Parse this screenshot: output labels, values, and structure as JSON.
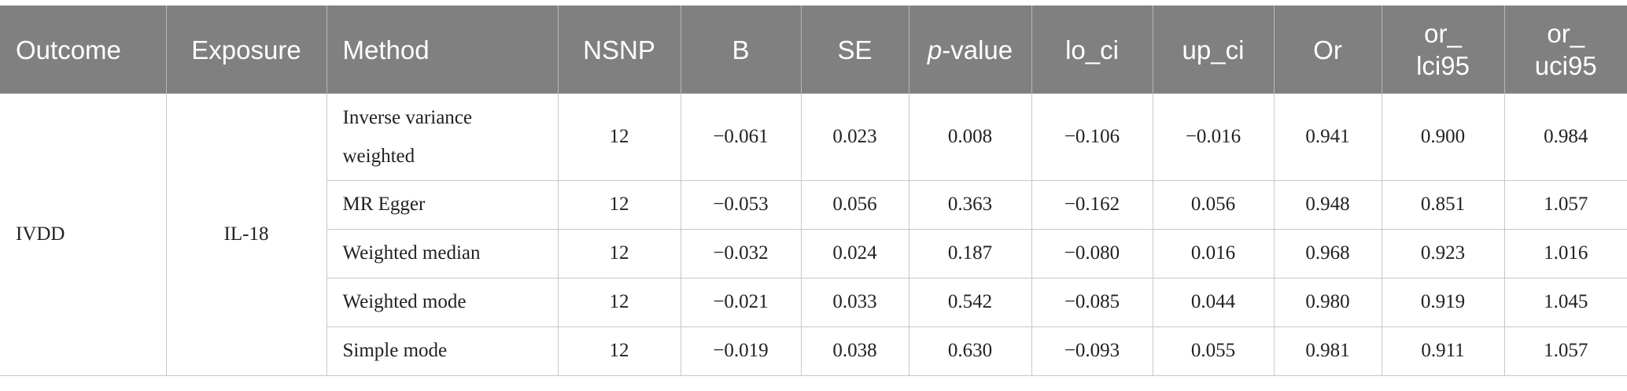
{
  "headers": [
    {
      "key": "outcome",
      "label": "Outcome"
    },
    {
      "key": "exposure",
      "label": "Exposure"
    },
    {
      "key": "method",
      "label": "Method"
    },
    {
      "key": "nsnp",
      "label": "NSNP"
    },
    {
      "key": "b",
      "label": "B"
    },
    {
      "key": "se",
      "label": "SE"
    },
    {
      "key": "pvalue",
      "label_italic": "p",
      "label_rest": "-value"
    },
    {
      "key": "lo_ci",
      "label": "lo_ci"
    },
    {
      "key": "up_ci",
      "label": "up_ci"
    },
    {
      "key": "or",
      "label": "Or"
    },
    {
      "key": "or_lci95",
      "label_line1": "or_",
      "label_line2": "lci95"
    },
    {
      "key": "or_uci95",
      "label_line1": "or_",
      "label_line2": "uci95"
    }
  ],
  "group": {
    "outcome": "IVDD",
    "exposure": "IL-18"
  },
  "rows": [
    {
      "method": "Inverse variance weighted",
      "nsnp": "12",
      "b": "−0.061",
      "se": "0.023",
      "pvalue": "0.008",
      "lo_ci": "−0.106",
      "up_ci": "−0.016",
      "or": "0.941",
      "or_lci95": "0.900",
      "or_uci95": "0.984"
    },
    {
      "method": "MR Egger",
      "nsnp": "12",
      "b": "−0.053",
      "se": "0.056",
      "pvalue": "0.363",
      "lo_ci": "−0.162",
      "up_ci": "0.056",
      "or": "0.948",
      "or_lci95": "0.851",
      "or_uci95": "1.057"
    },
    {
      "method": "Weighted median",
      "nsnp": "12",
      "b": "−0.032",
      "se": "0.024",
      "pvalue": "0.187",
      "lo_ci": "−0.080",
      "up_ci": "0.016",
      "or": "0.968",
      "or_lci95": "0.923",
      "or_uci95": "1.016"
    },
    {
      "method": "Weighted mode",
      "nsnp": "12",
      "b": "−0.021",
      "se": "0.033",
      "pvalue": "0.542",
      "lo_ci": "−0.085",
      "up_ci": "0.044",
      "or": "0.980",
      "or_lci95": "0.919",
      "or_uci95": "1.045"
    },
    {
      "method": "Simple mode",
      "nsnp": "12",
      "b": "−0.019",
      "se": "0.038",
      "pvalue": "0.630",
      "lo_ci": "−0.093",
      "up_ci": "0.055",
      "or": "0.981",
      "or_lci95": "0.911",
      "or_uci95": "1.057"
    }
  ],
  "colors": {
    "header_bg": "#808080",
    "header_text": "#ffffff",
    "grid": "#c8c8c8"
  }
}
